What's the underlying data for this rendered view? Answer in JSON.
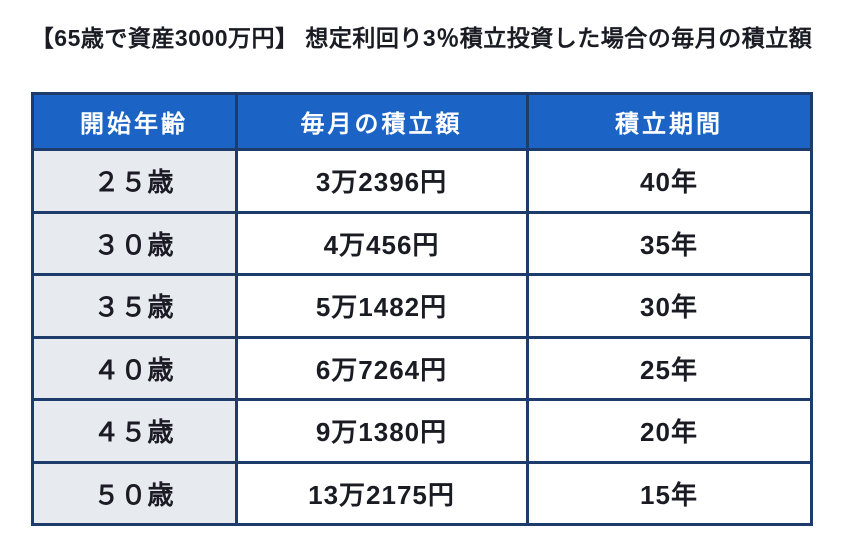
{
  "colors": {
    "page_bg": "#ffffff",
    "header_bg": "#1b63c5",
    "header_text": "#ffffff",
    "border": "#1d3c6b",
    "age_cell_bg": "#e7eaee",
    "body_text": "#1b1b24"
  },
  "chart_data": {
    "type": "table",
    "title": "【65歳で資産3000万円】 想定利回り3％積立投資した場合の毎月の積立額",
    "columns": [
      "開始年齢",
      "毎月の積立額",
      "積立期間"
    ],
    "rows": [
      [
        "２５歳",
        "3万2396円",
        "40年"
      ],
      [
        "３０歳",
        "4万456円",
        "35年"
      ],
      [
        "３５歳",
        "5万1482円",
        "30年"
      ],
      [
        "４０歳",
        "6万7264円",
        "25年"
      ],
      [
        "４５歳",
        "9万1380円",
        "20年"
      ],
      [
        "５０歳",
        "13万2175円",
        "15年"
      ]
    ],
    "numeric": {
      "start_age_years": [
        25,
        30,
        35,
        40,
        45,
        50
      ],
      "monthly_contribution_yen": [
        32396,
        40456,
        51482,
        67264,
        91380,
        132175
      ],
      "contribution_period_years": [
        40,
        35,
        30,
        25,
        20,
        15
      ]
    },
    "target_age": 65,
    "target_asset_yen": 30000000,
    "assumed_annual_return_percent": 3,
    "layout": {
      "header_position": "top",
      "grid": true
    }
  }
}
